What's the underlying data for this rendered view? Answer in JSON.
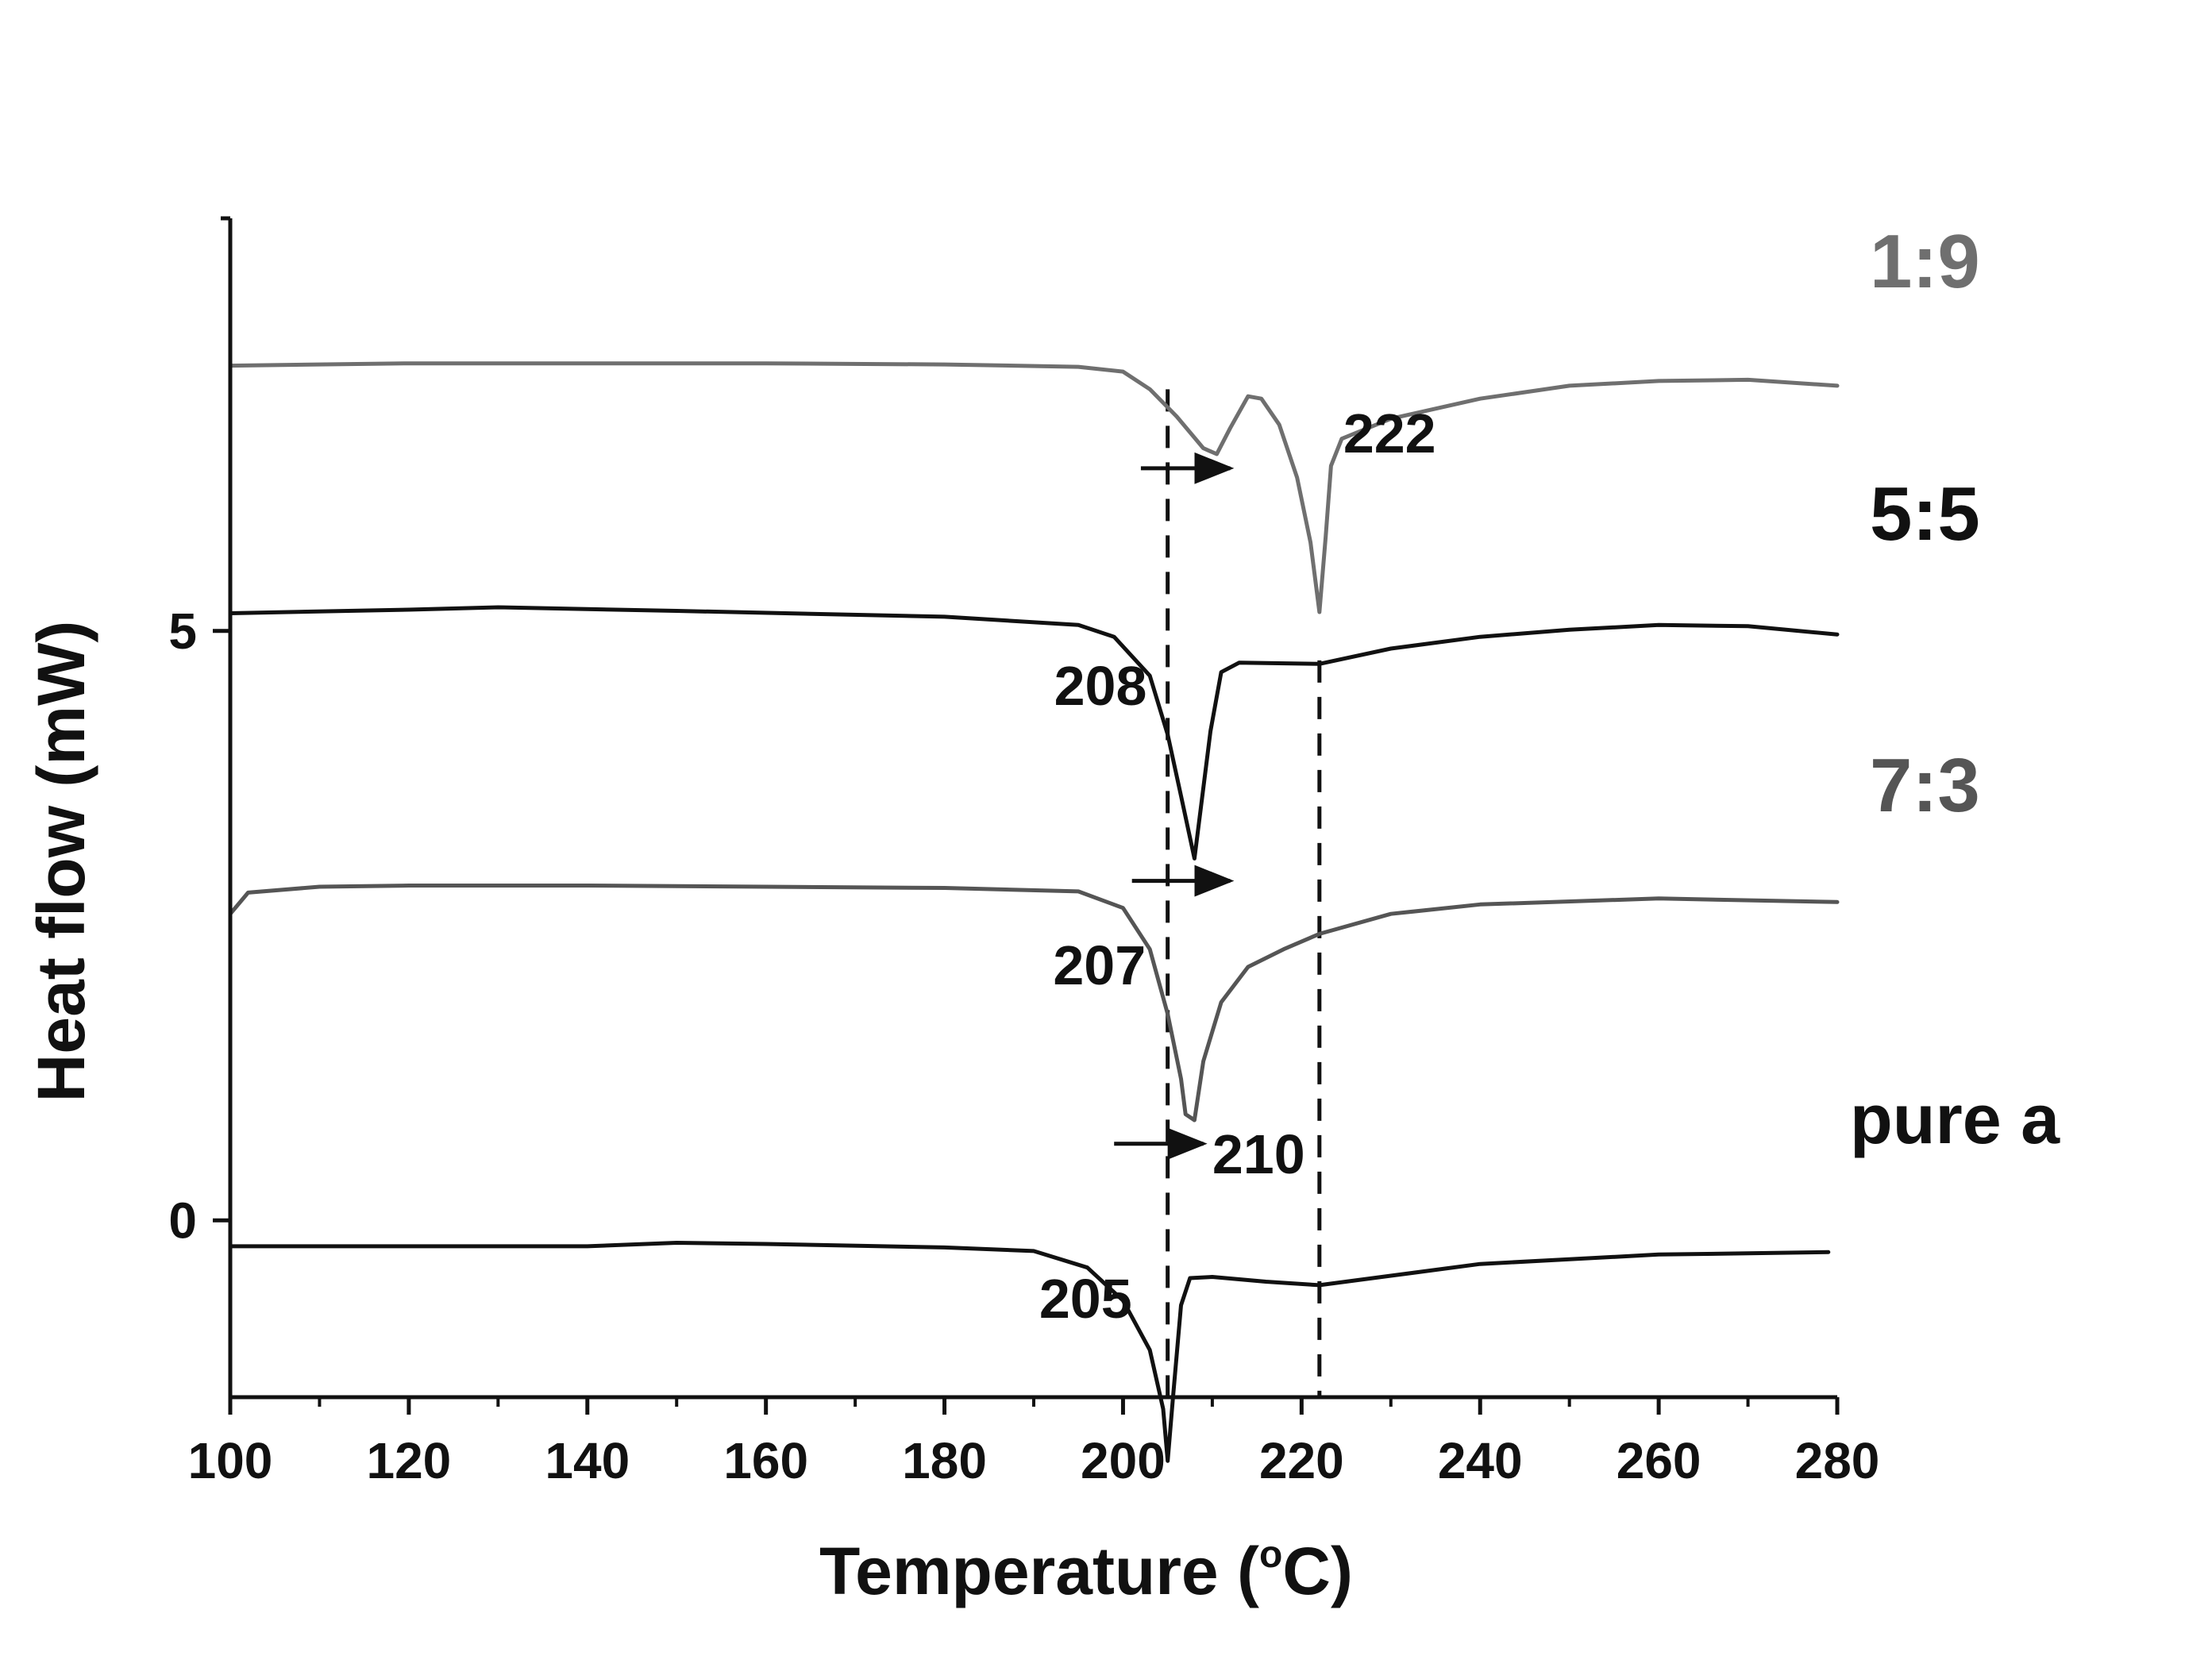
{
  "chart_data": {
    "type": "line",
    "title": "",
    "xlabel": "Temperature (°C)",
    "xlabel_parts": {
      "before": "Temperature (",
      "degree": "o",
      "after": "C)"
    },
    "ylabel": "Heat flow (mW)",
    "xlim": [
      100,
      280
    ],
    "ylim": [
      -1.5,
      8.5
    ],
    "x_ticks": [
      100,
      120,
      140,
      160,
      180,
      200,
      220,
      240,
      260,
      280
    ],
    "x_tick_labels": [
      "100",
      "120",
      "140",
      "160",
      "180",
      "200",
      "220",
      "240",
      "260",
      "280"
    ],
    "y_ticks": [
      0,
      5
    ],
    "y_tick_labels": [
      "0",
      "5"
    ],
    "grid": false,
    "legend": "none (series labelled at right end of each curve)",
    "colors": {
      "axis": "#111111",
      "black_series": "#111111",
      "gray_series": "#6f6f6f",
      "dark_gray_series": "#555555"
    },
    "series": [
      {
        "name": "1:9",
        "color": "#6f6f6f",
        "points": [
          [
            100,
            7.25
          ],
          [
            120,
            7.27
          ],
          [
            140,
            7.27
          ],
          [
            160,
            7.27
          ],
          [
            180,
            7.26
          ],
          [
            195,
            7.24
          ],
          [
            200,
            7.2
          ],
          [
            203,
            7.05
          ],
          [
            206,
            6.82
          ],
          [
            209,
            6.55
          ],
          [
            210.5,
            6.5
          ],
          [
            212,
            6.72
          ],
          [
            214,
            6.99
          ],
          [
            215.5,
            6.97
          ],
          [
            217.5,
            6.75
          ],
          [
            219.5,
            6.3
          ],
          [
            221,
            5.75
          ],
          [
            222,
            5.16
          ],
          [
            222.7,
            5.8
          ],
          [
            223.3,
            6.4
          ],
          [
            224.5,
            6.63
          ],
          [
            230,
            6.8
          ],
          [
            240,
            6.97
          ],
          [
            250,
            7.08
          ],
          [
            260,
            7.12
          ],
          [
            270,
            7.13
          ],
          [
            280,
            7.08
          ]
        ]
      },
      {
        "name": "5:5",
        "color": "#111111",
        "points": [
          [
            100,
            5.15
          ],
          [
            120,
            5.18
          ],
          [
            130,
            5.2
          ],
          [
            150,
            5.17
          ],
          [
            180,
            5.12
          ],
          [
            195,
            5.05
          ],
          [
            199,
            4.95
          ],
          [
            203,
            4.62
          ],
          [
            205,
            4.12
          ],
          [
            206.5,
            3.6
          ],
          [
            208,
            3.07
          ],
          [
            208.8,
            3.55
          ],
          [
            209.8,
            4.15
          ],
          [
            211,
            4.65
          ],
          [
            213,
            4.73
          ],
          [
            222,
            4.72
          ],
          [
            230,
            4.85
          ],
          [
            240,
            4.95
          ],
          [
            250,
            5.01
          ],
          [
            260,
            5.05
          ],
          [
            270,
            5.04
          ],
          [
            280,
            4.97
          ]
        ]
      },
      {
        "name": "7:3",
        "color": "#555555",
        "points": [
          [
            100,
            2.6
          ],
          [
            102,
            2.78
          ],
          [
            110,
            2.83
          ],
          [
            120,
            2.84
          ],
          [
            140,
            2.84
          ],
          [
            160,
            2.83
          ],
          [
            180,
            2.82
          ],
          [
            195,
            2.79
          ],
          [
            200,
            2.65
          ],
          [
            203,
            2.3
          ],
          [
            205,
            1.75
          ],
          [
            206.5,
            1.2
          ],
          [
            207,
            0.9
          ],
          [
            208,
            0.85
          ],
          [
            209,
            1.35
          ],
          [
            211,
            1.85
          ],
          [
            214,
            2.15
          ],
          [
            218,
            2.3
          ],
          [
            222,
            2.43
          ],
          [
            230,
            2.6
          ],
          [
            240,
            2.68
          ],
          [
            260,
            2.73
          ],
          [
            280,
            2.7
          ]
        ]
      },
      {
        "name": "pure a",
        "color": "#111111",
        "points": [
          [
            100,
            -0.22
          ],
          [
            120,
            -0.22
          ],
          [
            140,
            -0.22
          ],
          [
            150,
            -0.19
          ],
          [
            160,
            -0.2
          ],
          [
            180,
            -0.23
          ],
          [
            190,
            -0.26
          ],
          [
            196,
            -0.4
          ],
          [
            200,
            -0.68
          ],
          [
            203,
            -1.1
          ],
          [
            204.5,
            -1.6
          ],
          [
            205,
            -2.04
          ],
          [
            205.6,
            -1.5
          ],
          [
            206.5,
            -0.72
          ],
          [
            207.5,
            -0.49
          ],
          [
            210,
            -0.48
          ],
          [
            216,
            -0.52
          ],
          [
            222,
            -0.55
          ],
          [
            230,
            -0.47
          ],
          [
            240,
            -0.37
          ],
          [
            250,
            -0.33
          ],
          [
            260,
            -0.29
          ],
          [
            270,
            -0.28
          ],
          [
            279,
            -0.27
          ]
        ]
      }
    ],
    "peak_annotations": [
      {
        "label": "210",
        "x": 210,
        "y": 6.5
      },
      {
        "label": "222",
        "x": 222,
        "y": 5.16
      },
      {
        "label": "208",
        "x": 208,
        "y": 3.07
      },
      {
        "label": "207",
        "x": 207,
        "y": 0.85
      },
      {
        "label": "205",
        "x": 205,
        "y": -2.04
      }
    ],
    "reference_lines": [
      {
        "x": 205,
        "style": "dashed"
      },
      {
        "x": 222,
        "style": "dashed"
      }
    ],
    "shift_arrows": [
      {
        "from_x": 202,
        "to_x": 212,
        "y": 6.38,
        "series": "1:9"
      },
      {
        "from_x": 201,
        "to_x": 212,
        "y": 2.88,
        "series": "5:5"
      },
      {
        "from_x": 199,
        "to_x": 209,
        "y": 0.65,
        "series": "7:3"
      }
    ]
  }
}
